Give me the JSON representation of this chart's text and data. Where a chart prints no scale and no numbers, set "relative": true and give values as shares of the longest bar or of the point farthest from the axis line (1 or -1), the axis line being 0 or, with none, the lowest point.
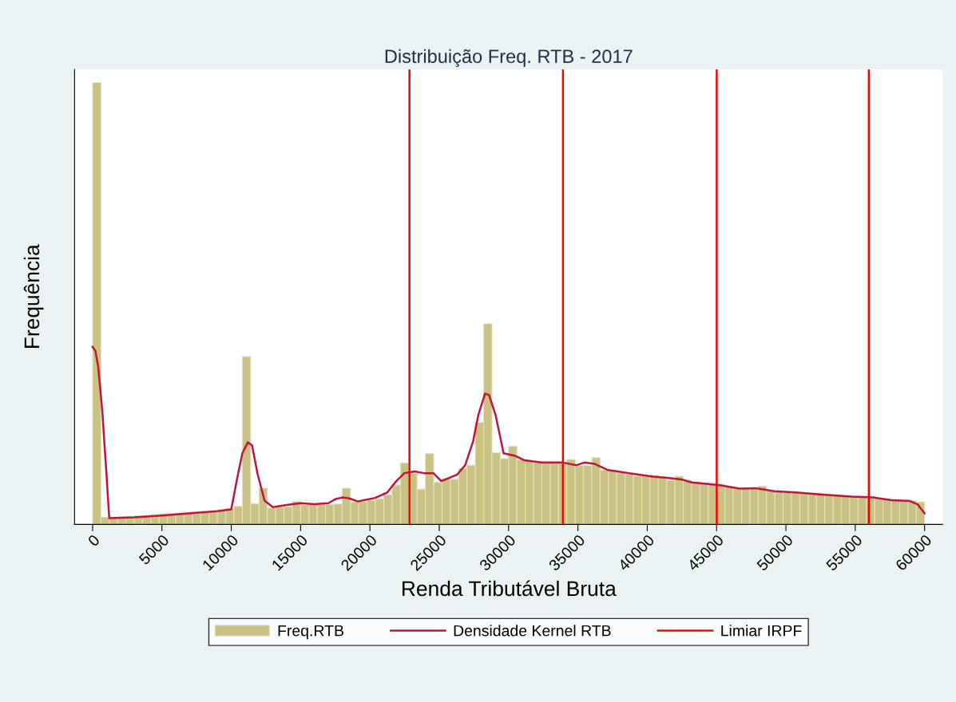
{
  "chart_data": {
    "type": "histogram",
    "title": "Distribuição Freq. RTB - 2017",
    "xlabel": "Renda Tributável Bruta",
    "ylabel": "Frequência",
    "relative": true,
    "bins": [
      0,
      600,
      1200,
      1800,
      2400,
      3000,
      3600,
      4200,
      4800,
      5400,
      6000,
      6600,
      7200,
      7800,
      8400,
      9000,
      9600,
      10200,
      10800,
      11400,
      12000,
      12600,
      13200,
      13800,
      14400,
      15000,
      15600,
      16200,
      16800,
      17400,
      18000,
      18600,
      19200,
      19800,
      20400,
      21000,
      21600,
      22200,
      22800,
      23400,
      24000,
      24600,
      25200,
      25800,
      26400,
      27000,
      27600,
      28200,
      28800,
      29400,
      30000,
      30600,
      31200,
      31800,
      32400,
      33000,
      33600,
      34200,
      34800,
      35400,
      36000,
      36600,
      37200,
      37800,
      38400,
      39000,
      39600,
      40200,
      40800,
      41400,
      42000,
      42600,
      43200,
      43800,
      44400,
      45000,
      45600,
      46200,
      46800,
      47400,
      48000,
      48600,
      49200,
      49800,
      50400,
      51000,
      51600,
      52200,
      52800,
      53400,
      54000,
      54600,
      55200,
      55800,
      56400,
      57000,
      57600,
      58200,
      58800,
      59400,
      60000
    ],
    "series": [
      {
        "name": "Freq.RTB",
        "color": "#c9c283",
        "values": [
          1.0,
          0.016,
          0.016,
          0.017,
          0.018,
          0.019,
          0.02,
          0.022,
          0.024,
          0.025,
          0.026,
          0.027,
          0.028,
          0.03,
          0.031,
          0.033,
          0.036,
          0.041,
          0.38,
          0.047,
          0.082,
          0.037,
          0.039,
          0.04,
          0.052,
          0.044,
          0.045,
          0.046,
          0.045,
          0.046,
          0.082,
          0.051,
          0.052,
          0.055,
          0.058,
          0.067,
          0.089,
          0.139,
          0.116,
          0.08,
          0.16,
          0.095,
          0.104,
          0.102,
          0.127,
          0.134,
          0.231,
          0.454,
          0.162,
          0.149,
          0.177,
          0.147,
          0.143,
          0.141,
          0.139,
          0.138,
          0.138,
          0.147,
          0.133,
          0.133,
          0.151,
          0.123,
          0.121,
          0.117,
          0.113,
          0.11,
          0.109,
          0.111,
          0.107,
          0.1,
          0.109,
          0.099,
          0.094,
          0.093,
          0.09,
          0.091,
          0.085,
          0.082,
          0.081,
          0.08,
          0.087,
          0.076,
          0.075,
          0.074,
          0.072,
          0.071,
          0.07,
          0.069,
          0.068,
          0.067,
          0.064,
          0.063,
          0.062,
          0.06,
          0.059,
          0.058,
          0.055,
          0.055,
          0.054,
          0.051
        ]
      },
      {
        "name": "Densidade Kernel RTB",
        "type": "line",
        "color": "#c0143c",
        "x": [
          0,
          200,
          400,
          700,
          1000,
          1200,
          3000,
          5000,
          7000,
          9000,
          10000,
          10400,
          10800,
          11200,
          11500,
          11900,
          12400,
          13000,
          14000,
          15000,
          16000,
          17000,
          17500,
          18000,
          18500,
          19140,
          20380,
          21240,
          21900,
          22480,
          23240,
          23910,
          24580,
          25150,
          26300,
          26870,
          27440,
          27820,
          28300,
          28590,
          29060,
          29640,
          30500,
          31160,
          32400,
          33930,
          34890,
          35460,
          36220,
          37180,
          38700,
          40420,
          41300,
          42450,
          43220,
          45140,
          46670,
          47820,
          49160,
          50890,
          52800,
          54730,
          56260,
          57600,
          58940,
          59510,
          60000
        ],
        "values": [
          0.402,
          0.393,
          0.358,
          0.257,
          0.114,
          0.014,
          0.016,
          0.02,
          0.025,
          0.03,
          0.034,
          0.1,
          0.161,
          0.186,
          0.179,
          0.114,
          0.054,
          0.039,
          0.044,
          0.048,
          0.046,
          0.048,
          0.057,
          0.061,
          0.059,
          0.052,
          0.06,
          0.072,
          0.098,
          0.116,
          0.12,
          0.116,
          0.116,
          0.098,
          0.113,
          0.134,
          0.188,
          0.248,
          0.296,
          0.293,
          0.248,
          0.161,
          0.155,
          0.145,
          0.14,
          0.14,
          0.134,
          0.14,
          0.137,
          0.123,
          0.116,
          0.108,
          0.106,
          0.102,
          0.095,
          0.089,
          0.081,
          0.082,
          0.075,
          0.072,
          0.067,
          0.063,
          0.061,
          0.055,
          0.053,
          0.045,
          0.025
        ]
      }
    ],
    "ref_lines": [
      {
        "axis": "x",
        "value": 22850,
        "label": "Limiar IRPF",
        "color": "#ff0000"
      },
      {
        "axis": "x",
        "value": 33920,
        "color": "#ff0000"
      },
      {
        "axis": "x",
        "value": 45010,
        "color": "#ff0000"
      },
      {
        "axis": "x",
        "value": 55980,
        "color": "#ff0000"
      }
    ],
    "xlim": [
      -1300,
      61300
    ],
    "xticks": [
      0,
      5000,
      10000,
      15000,
      20000,
      25000,
      30000,
      35000,
      40000,
      45000,
      50000,
      55000,
      60000
    ],
    "grid": false,
    "legend": "bottom"
  }
}
